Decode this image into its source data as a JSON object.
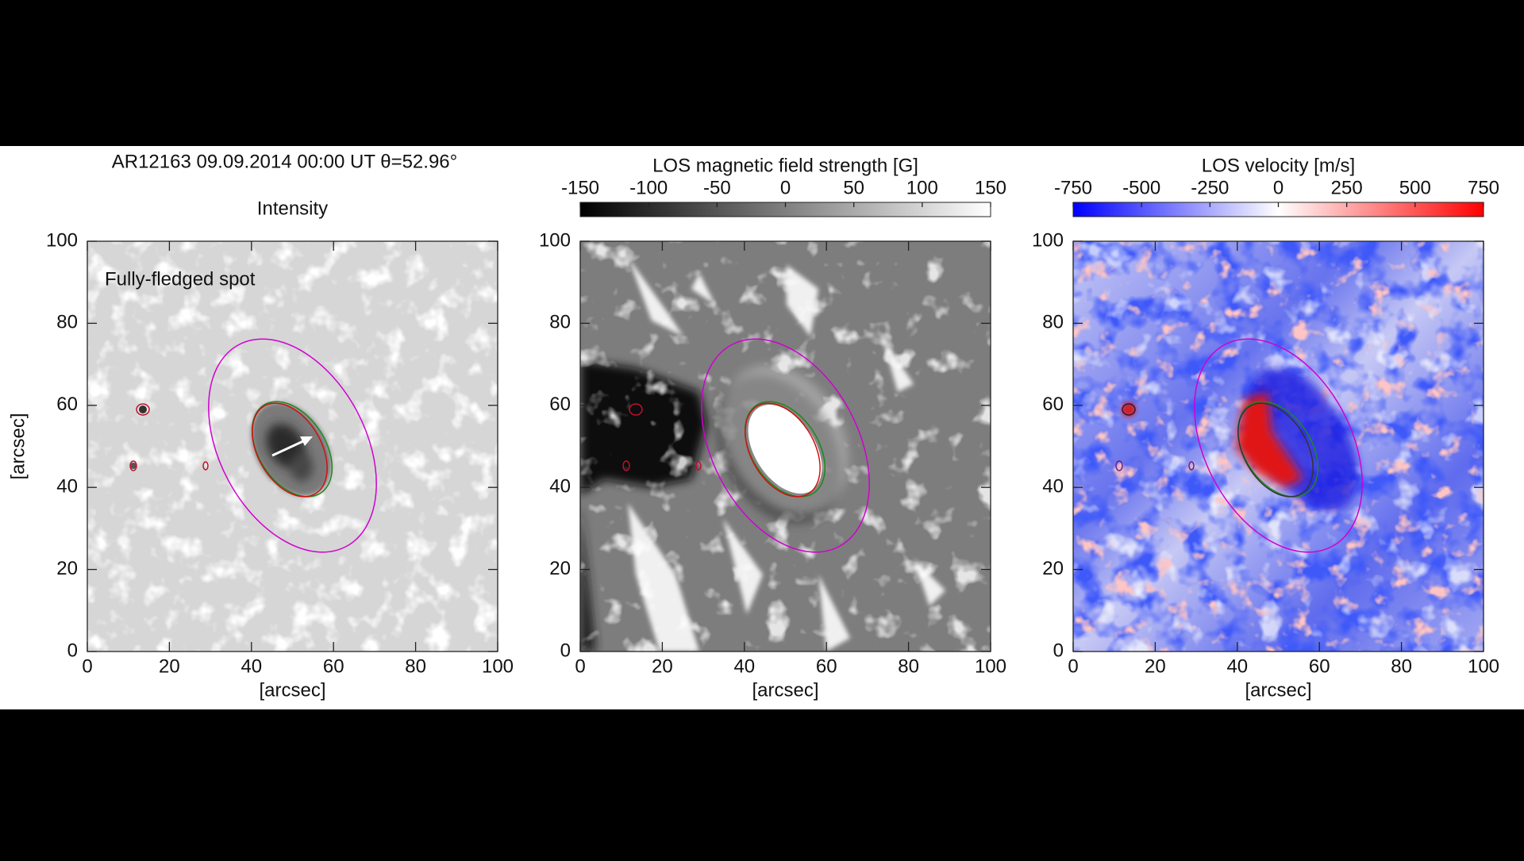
{
  "chart_data": [
    {
      "type": "image",
      "title": "AR12163  09.09.2014 00:00 UT  θ=52.96°",
      "subtitle": "Intensity",
      "annotation": "Fully-fledged spot",
      "xlabel": "[arcsec]",
      "ylabel": "[arcsec]",
      "xlim": [
        0,
        100
      ],
      "ylim": [
        0,
        100
      ],
      "xticks": [
        0,
        20,
        40,
        60,
        80,
        100
      ],
      "yticks": [
        0,
        20,
        40,
        60,
        80,
        100
      ]
    },
    {
      "type": "image",
      "xlabel": "[arcsec]",
      "xlim": [
        0,
        100
      ],
      "ylim": [
        0,
        100
      ],
      "xticks": [
        0,
        20,
        40,
        60,
        80,
        100
      ],
      "yticks": [
        0,
        20,
        40,
        60,
        80,
        100
      ],
      "colorbar": {
        "label": "LOS magnetic field strength [G]",
        "lim": [
          -150,
          150
        ],
        "ticks": [
          -150,
          -100,
          -50,
          0,
          50,
          100,
          150
        ],
        "colors": [
          "#000000",
          "#ffffff"
        ]
      }
    },
    {
      "type": "image",
      "xlabel": "[arcsec]",
      "xlim": [
        0,
        100
      ],
      "ylim": [
        0,
        100
      ],
      "xticks": [
        0,
        20,
        40,
        60,
        80,
        100
      ],
      "yticks": [
        0,
        20,
        40,
        60,
        80,
        100
      ],
      "colorbar": {
        "label": "LOS velocity [m/s]",
        "lim": [
          -750,
          750
        ],
        "ticks": [
          -750,
          -500,
          -250,
          0,
          250,
          500,
          750
        ],
        "colors": [
          "#0000ff",
          "#ffffff",
          "#ff0000"
        ]
      }
    }
  ]
}
